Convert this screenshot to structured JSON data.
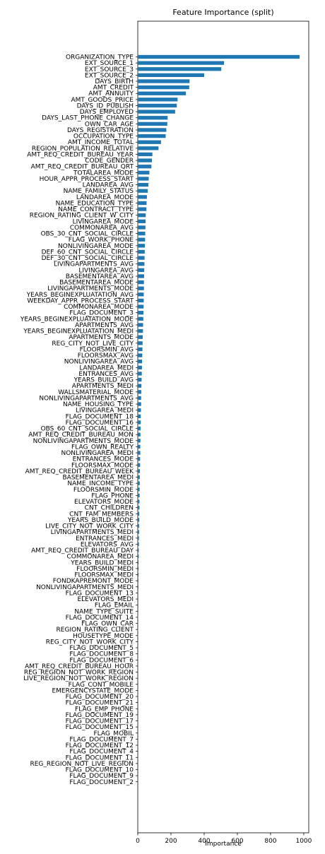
{
  "chart_data": {
    "type": "bar",
    "orientation": "horizontal",
    "title": "Feature Importance (split)",
    "xlabel": "Importance",
    "ylabel": "",
    "xlim": [
      0,
      1030
    ],
    "xticks": [
      0,
      200,
      400,
      600,
      800,
      1000
    ],
    "grid": false,
    "legend": "none",
    "bar_color": "#1f77b4",
    "categories": [
      "ORGANIZATION_TYPE",
      "EXT_SOURCE_1",
      "EXT_SOURCE_3",
      "EXT_SOURCE_2",
      "DAYS_BIRTH",
      "AMT_CREDIT",
      "AMT_ANNUITY",
      "AMT_GOODS_PRICE",
      "DAYS_ID_PUBLISH",
      "DAYS_EMPLOYED",
      "DAYS_LAST_PHONE_CHANGE",
      "OWN_CAR_AGE",
      "DAYS_REGISTRATION",
      "OCCUPATION_TYPE",
      "AMT_INCOME_TOTAL",
      "REGION_POPULATION_RELATIVE",
      "AMT_REQ_CREDIT_BUREAU_YEAR",
      "CODE_GENDER",
      "AMT_REQ_CREDIT_BUREAU_QRT",
      "TOTALAREA_MODE",
      "HOUR_APPR_PROCESS_START",
      "LANDAREA_AVG",
      "NAME_FAMILY_STATUS",
      "LANDAREA_MODE",
      "NAME_EDUCATION_TYPE",
      "NAME_CONTRACT_TYPE",
      "REGION_RATING_CLIENT_W_CITY",
      "LIVINGAREA_MODE",
      "COMMONAREA_AVG",
      "OBS_30_CNT_SOCIAL_CIRCLE",
      "FLAG_WORK_PHONE",
      "NONLIVINGAREA_MODE",
      "DEF_60_CNT_SOCIAL_CIRCLE",
      "DEF_30_CNT_SOCIAL_CIRCLE",
      "LIVINGAPARTMENTS_AVG",
      "LIVINGAREA_AVG",
      "BASEMENTAREA_AVG",
      "BASEMENTAREA_MODE",
      "LIVINGAPARTMENTS_MODE",
      "YEARS_BEGINEXPLUATATION_AVG",
      "WEEKDAY_APPR_PROCESS_START",
      "COMMONAREA_MODE",
      "FLAG_DOCUMENT_3",
      "YEARS_BEGINEXPLUATATION_MODE",
      "APARTMENTS_AVG",
      "YEARS_BEGINEXPLUATATION_MEDI",
      "APARTMENTS_MODE",
      "REG_CITY_NOT_LIVE_CITY",
      "FLOORSMIN_AVG",
      "FLOORSMAX_AVG",
      "NONLIVINGAREA_AVG",
      "LANDAREA_MEDI",
      "ENTRANCES_AVG",
      "YEARS_BUILD_AVG",
      "APARTMENTS_MEDI",
      "WALLSMATERIAL_MODE",
      "NONLIVINGAPARTMENTS_AVG",
      "NAME_HOUSING_TYPE",
      "LIVINGAREA_MEDI",
      "FLAG_DOCUMENT_18",
      "FLAG_DOCUMENT_16",
      "OBS_60_CNT_SOCIAL_CIRCLE",
      "AMT_REQ_CREDIT_BUREAU_MON",
      "NONLIVINGAPARTMENTS_MODE",
      "FLAG_OWN_REALTY",
      "NONLIVINGAREA_MEDI",
      "ENTRANCES_MODE",
      "FLOORSMAX_MODE",
      "AMT_REQ_CREDIT_BUREAU_WEEK",
      "BASEMENTAREA_MEDI",
      "NAME_INCOME_TYPE",
      "FLOORSMIN_MODE",
      "FLAG_PHONE",
      "ELEVATORS_MODE",
      "CNT_CHILDREN",
      "CNT_FAM_MEMBERS",
      "YEARS_BUILD_MODE",
      "LIVE_CITY_NOT_WORK_CITY",
      "LIVINGAPARTMENTS_MEDI",
      "ENTRANCES_MEDI",
      "ELEVATORS_AVG",
      "AMT_REQ_CREDIT_BUREAU_DAY",
      "COMMONAREA_MEDI",
      "YEARS_BUILD_MEDI",
      "FLOORSMIN_MEDI",
      "FLOORSMAX_MEDI",
      "FONDKAPREMONT_MODE",
      "NONLIVINGAPARTMENTS_MEDI",
      "FLAG_DOCUMENT_13",
      "ELEVATORS_MEDI",
      "FLAG_EMAIL",
      "NAME_TYPE_SUITE",
      "FLAG_DOCUMENT_14",
      "FLAG_OWN_CAR",
      "REGION_RATING_CLIENT",
      "HOUSETYPE_MODE",
      "REG_CITY_NOT_WORK_CITY",
      "FLAG_DOCUMENT_5",
      "FLAG_DOCUMENT_8",
      "FLAG_DOCUMENT_6",
      "AMT_REQ_CREDIT_BUREAU_HOUR",
      "REG_REGION_NOT_WORK_REGION",
      "LIVE_REGION_NOT_WORK_REGION",
      "FLAG_CONT_MOBILE",
      "EMERGENCYSTATE_MODE",
      "FLAG_DOCUMENT_20",
      "FLAG_DOCUMENT_21",
      "FLAG_EMP_PHONE",
      "FLAG_DOCUMENT_19",
      "FLAG_DOCUMENT_17",
      "FLAG_DOCUMENT_15",
      "FLAG_MOBIL",
      "FLAG_DOCUMENT_7",
      "FLAG_DOCUMENT_12",
      "FLAG_DOCUMENT_4",
      "FLAG_DOCUMENT_11",
      "REG_REGION_NOT_LIVE_REGION",
      "FLAG_DOCUMENT_10",
      "FLAG_DOCUMENT_9",
      "FLAG_DOCUMENT_2"
    ],
    "values": [
      975,
      520,
      503,
      400,
      312,
      310,
      290,
      240,
      235,
      225,
      180,
      178,
      172,
      168,
      140,
      125,
      88,
      85,
      82,
      70,
      66,
      64,
      60,
      55,
      53,
      52,
      48,
      47,
      46,
      45,
      44,
      43,
      42,
      41,
      40,
      39,
      38,
      37,
      37,
      36,
      36,
      35,
      34,
      33,
      32,
      31,
      30,
      29,
      28,
      27,
      26,
      25,
      24,
      23,
      22,
      21,
      20,
      20,
      19,
      18,
      18,
      17,
      16,
      16,
      15,
      15,
      14,
      14,
      13,
      12,
      12,
      11,
      11,
      10,
      10,
      9,
      9,
      8,
      8,
      7,
      7,
      6,
      6,
      5,
      5,
      5,
      4,
      4,
      3,
      3,
      3,
      3,
      2,
      2,
      2,
      2,
      1,
      1,
      1,
      1,
      1,
      1,
      0,
      0,
      0,
      0,
      0,
      0,
      0,
      0,
      0,
      0,
      0,
      0,
      0,
      0,
      0,
      0,
      0,
      0
    ]
  }
}
